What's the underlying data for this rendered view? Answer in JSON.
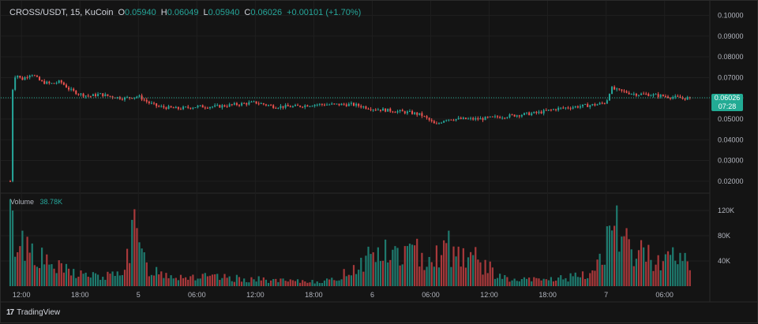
{
  "header": {
    "symbol": "CROSS/USDT, 15, KuCoin",
    "open_label": "O",
    "open": "0.05940",
    "high_label": "H",
    "high": "0.06049",
    "low_label": "L",
    "low": "0.05940",
    "close_label": "C",
    "close": "0.06026",
    "change": "+0.00101 (+1.70%)"
  },
  "volume_label": {
    "title": "Volume",
    "value": "38.78K"
  },
  "last_price_tag": {
    "price": "0.06026",
    "countdown": "07:28"
  },
  "footer": {
    "brand": "TradingView",
    "logo_glyph": "17"
  },
  "colors": {
    "up": "#26a69a",
    "down": "#ef5350",
    "background": "#141414",
    "grid": "#1f1f1f",
    "tag": "#22ab94"
  },
  "chart_data": {
    "type": "candlestick",
    "symbol": "CROSS/USDT",
    "interval": "15",
    "exchange": "KuCoin",
    "price_axis": {
      "ticks": [
        "0.10000",
        "0.09000",
        "0.08000",
        "0.07000",
        "0.06000",
        "0.05000",
        "0.04000",
        "0.03000",
        "0.02000"
      ],
      "range": [
        0.015,
        0.104
      ]
    },
    "volume_axis": {
      "ticks": [
        "120K",
        "80K",
        "40K"
      ],
      "range": [
        0,
        145
      ]
    },
    "time_axis": {
      "ticks": [
        "12:00",
        "18:00",
        "5",
        "06:00",
        "12:00",
        "18:00",
        "6",
        "06:00",
        "12:00",
        "18:00",
        "7",
        "06:00"
      ],
      "tick_hours": [
        12,
        18,
        24,
        30,
        36,
        42,
        48,
        54,
        60,
        66,
        72,
        78
      ],
      "start_hour": 10.85,
      "end_hour": 80.7
    },
    "last_price": 0.06026,
    "price_path": [
      [
        10.85,
        0.02
      ],
      [
        11.0,
        0.062
      ],
      [
        11.4,
        0.072
      ],
      [
        12.0,
        0.069
      ],
      [
        13.0,
        0.072
      ],
      [
        14.0,
        0.068
      ],
      [
        15.0,
        0.067
      ],
      [
        16.0,
        0.068
      ],
      [
        17.0,
        0.064
      ],
      [
        18.0,
        0.062
      ],
      [
        19.0,
        0.061
      ],
      [
        20.0,
        0.062
      ],
      [
        21.0,
        0.061
      ],
      [
        22.5,
        0.06
      ],
      [
        24.0,
        0.061
      ],
      [
        25.0,
        0.058
      ],
      [
        26.0,
        0.056
      ],
      [
        28.0,
        0.055
      ],
      [
        30.0,
        0.056
      ],
      [
        32.0,
        0.056
      ],
      [
        34.0,
        0.057
      ],
      [
        36.0,
        0.058
      ],
      [
        38.0,
        0.056
      ],
      [
        40.0,
        0.056
      ],
      [
        42.0,
        0.057
      ],
      [
        44.0,
        0.057
      ],
      [
        46.0,
        0.057
      ],
      [
        48.0,
        0.055
      ],
      [
        50.0,
        0.054
      ],
      [
        52.0,
        0.053
      ],
      [
        53.0,
        0.052
      ],
      [
        54.0,
        0.049
      ],
      [
        54.5,
        0.047
      ],
      [
        55.5,
        0.05
      ],
      [
        57.0,
        0.05
      ],
      [
        59.0,
        0.05
      ],
      [
        61.0,
        0.051
      ],
      [
        63.0,
        0.052
      ],
      [
        65.0,
        0.053
      ],
      [
        67.0,
        0.055
      ],
      [
        69.0,
        0.056
      ],
      [
        71.0,
        0.057
      ],
      [
        72.0,
        0.058
      ],
      [
        72.5,
        0.065
      ],
      [
        73.0,
        0.064
      ],
      [
        74.0,
        0.063
      ],
      [
        75.0,
        0.062
      ],
      [
        76.0,
        0.062
      ],
      [
        78.0,
        0.061
      ],
      [
        80.0,
        0.06
      ],
      [
        80.7,
        0.06026
      ]
    ],
    "volume_profile": [
      [
        10.85,
        95
      ],
      [
        11.5,
        80
      ],
      [
        13.0,
        70
      ],
      [
        14.5,
        40
      ],
      [
        16.0,
        30
      ],
      [
        18.0,
        22
      ],
      [
        20.0,
        16
      ],
      [
        22.0,
        20
      ],
      [
        23.5,
        85
      ],
      [
        25.0,
        30
      ],
      [
        28.0,
        18
      ],
      [
        32.0,
        15
      ],
      [
        36.0,
        12
      ],
      [
        40.0,
        8
      ],
      [
        44.0,
        10
      ],
      [
        47.0,
        42
      ],
      [
        48.0,
        60
      ],
      [
        50.0,
        55
      ],
      [
        52.0,
        58
      ],
      [
        54.0,
        55
      ],
      [
        56.0,
        62
      ],
      [
        58.0,
        55
      ],
      [
        60.0,
        30
      ],
      [
        62.0,
        10
      ],
      [
        66.0,
        12
      ],
      [
        70.0,
        18
      ],
      [
        71.0,
        35
      ],
      [
        72.0,
        78
      ],
      [
        74.0,
        70
      ],
      [
        76.0,
        55
      ],
      [
        78.0,
        50
      ],
      [
        80.7,
        45
      ]
    ],
    "volume_spikes": [
      [
        10.9,
        138
      ],
      [
        11.1,
        120
      ],
      [
        23.6,
        122
      ],
      [
        55.8,
        88
      ],
      [
        72.2,
        95
      ],
      [
        73.2,
        128
      ],
      [
        74.0,
        92
      ]
    ]
  }
}
